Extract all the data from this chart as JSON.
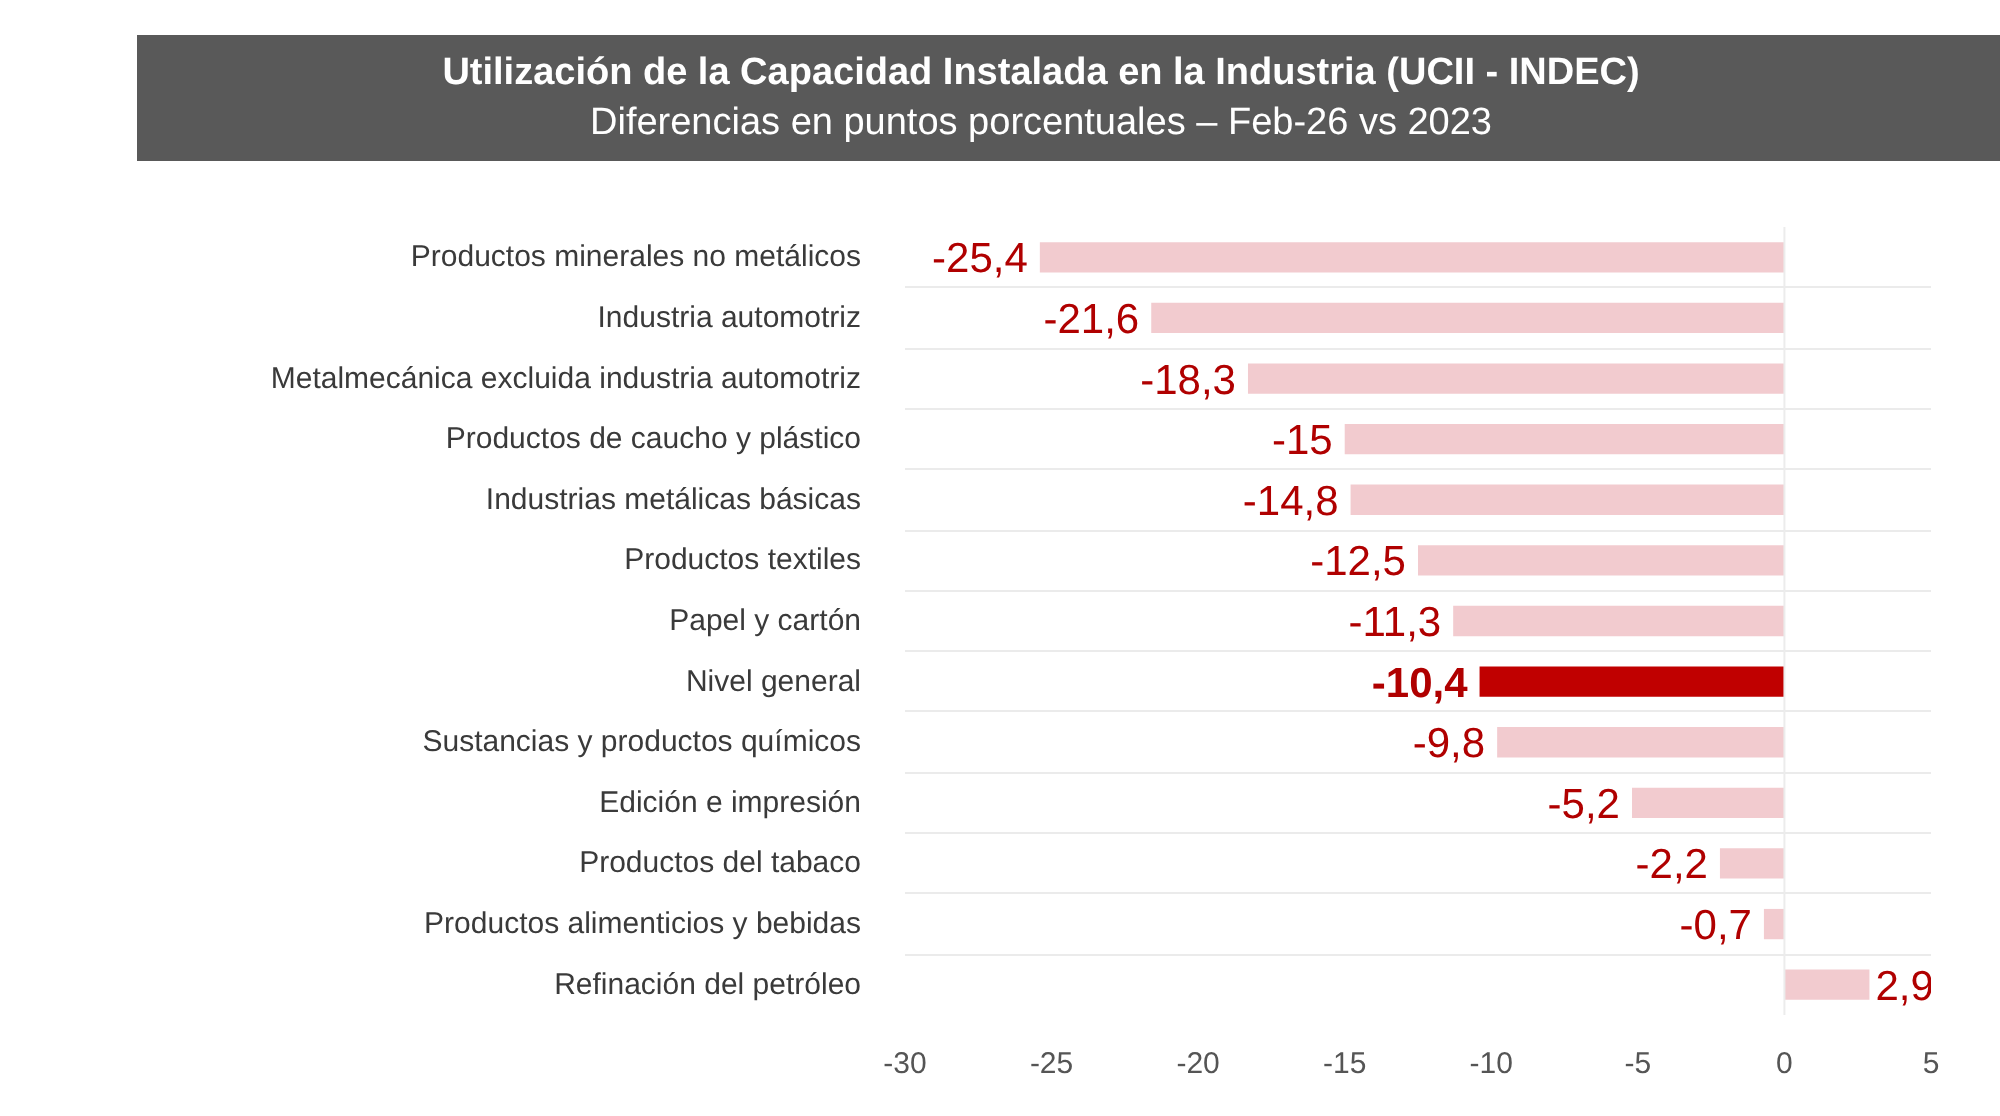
{
  "chart_data": {
    "type": "bar",
    "orientation": "horizontal",
    "title": "Utilización de la Capacidad Instalada en la Industria (UCII - INDEC)",
    "subtitle": "Diferencias en puntos porcentuales – Feb-26 vs 2023",
    "categories": [
      "Productos minerales no metálicos",
      "Industria automotriz",
      "Metalmecánica excluida industria automotriz",
      "Productos de caucho y plástico",
      "Industrias metálicas básicas",
      "Productos textiles",
      "Papel y cartón",
      "Nivel general",
      "Sustancias y productos químicos",
      "Edición e impresión",
      "Productos del tabaco",
      "Productos alimenticios y bebidas",
      "Refinación del petróleo"
    ],
    "values": [
      -25.4,
      -21.6,
      -18.3,
      -15,
      -14.8,
      -12.5,
      -11.3,
      -10.4,
      -9.8,
      -5.2,
      -2.2,
      -0.7,
      2.9
    ],
    "colors": [
      "#f2cbcf",
      "#f2cbcf",
      "#f2cbcf",
      "#f2cbcf",
      "#f2cbcf",
      "#f2cbcf",
      "#f2cbcf",
      "#c00000",
      "#f2cbcf",
      "#f2cbcf",
      "#f2cbcf",
      "#f2cbcf",
      "#f2cbcf"
    ],
    "value_labels": [
      "-25,4",
      "-21,6",
      "-18,3",
      "-15",
      "-14,8",
      "-12,5",
      "-11,3",
      "-10,4",
      "-9,8",
      "-5,2",
      "-2,2",
      "-0,7",
      "2,9"
    ],
    "xlim": [
      -30,
      5
    ],
    "xticks": [
      -30,
      -25,
      -20,
      -15,
      -10,
      -5,
      0,
      5
    ],
    "grid": "y",
    "ref_lines": [
      {
        "axis": "x",
        "value": 0,
        "color": "#ececec"
      }
    ]
  }
}
